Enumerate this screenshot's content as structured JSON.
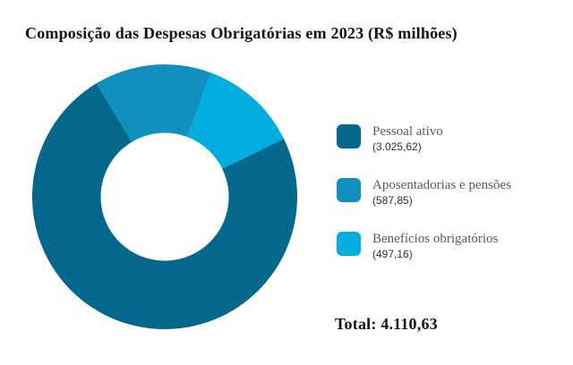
{
  "chart_data": {
    "type": "pie",
    "donut": true,
    "title": "Composição das Despesas Obrigatórias em 2023 (R$ milhões)",
    "legend_position": "right",
    "start_angle_deg_clockwise_from_top": 64,
    "inner_radius_ratio": 0.483,
    "slices": [
      {
        "label": "Pessoal ativo",
        "value": 3025.62,
        "display_value": "(3.025,62)",
        "color": "#04688c"
      },
      {
        "label": "Aposentadorias e pensões",
        "value": 587.85,
        "display_value": "(587,85)",
        "color": "#0f90bd"
      },
      {
        "label": "Benefícios obrigatórios",
        "value": 497.16,
        "display_value": "(497,16)",
        "color": "#01acdf"
      }
    ],
    "total_value": 4110.63,
    "total_label": "Total: 4.110,63"
  }
}
